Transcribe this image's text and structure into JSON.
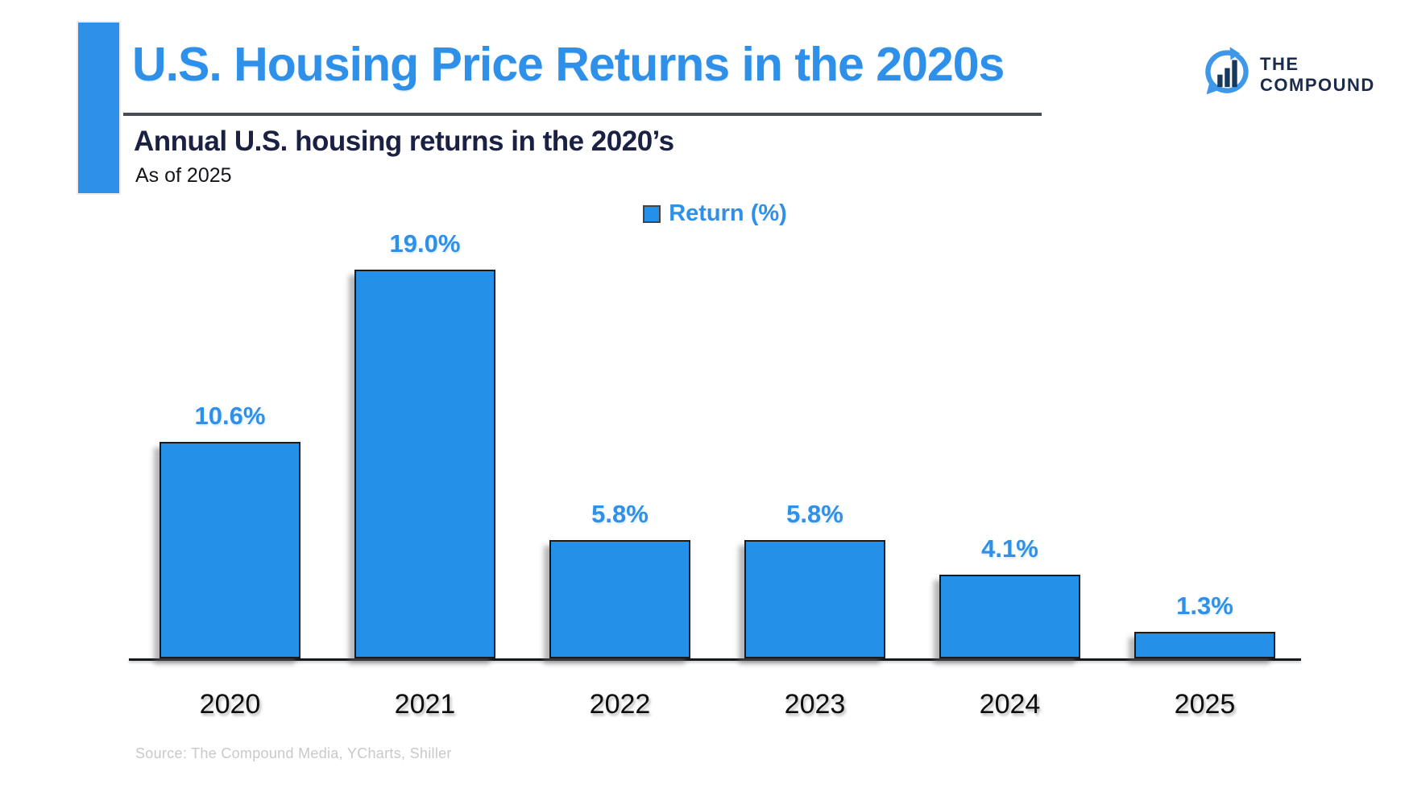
{
  "header": {
    "title": "U.S. Housing Price Returns in the 2020s",
    "subtitle": "Annual U.S. housing returns in the 2020’s",
    "as_of": "As of 2025"
  },
  "logo": {
    "line1": "THE",
    "line2": "COMPOUND"
  },
  "footer": {
    "source": "Source: The Compound Media, YCharts, Shiller"
  },
  "colors": {
    "accent_blue": "#2e90e8",
    "bar_fill": "#2590e8",
    "bar_border": "#1a1a1a",
    "heading_navy": "#1b2142",
    "logo_navy": "#1b2b4a",
    "source_gray": "#c9c9c9"
  },
  "chart_data": {
    "type": "bar",
    "title": "U.S. Housing Price Returns in the 2020s",
    "subtitle": "Annual U.S. housing returns in the 2020’s",
    "legend_label": "Return (%)",
    "legend_position": "top-center",
    "series_name": "Return (%)",
    "categories": [
      "2020",
      "2021",
      "2022",
      "2023",
      "2024",
      "2025"
    ],
    "values": [
      10.6,
      19.0,
      5.8,
      5.8,
      4.1,
      1.3
    ],
    "value_labels": [
      "10.6%",
      "19.0%",
      "5.8%",
      "5.8%",
      "4.1%",
      "1.3%"
    ],
    "xlabel": "",
    "ylabel": "",
    "ylim": [
      0,
      20
    ],
    "grid": false,
    "y_axis_ticks_visible": false,
    "bar_color": "#2590e8",
    "bar_border_color": "#1a1a1a"
  }
}
